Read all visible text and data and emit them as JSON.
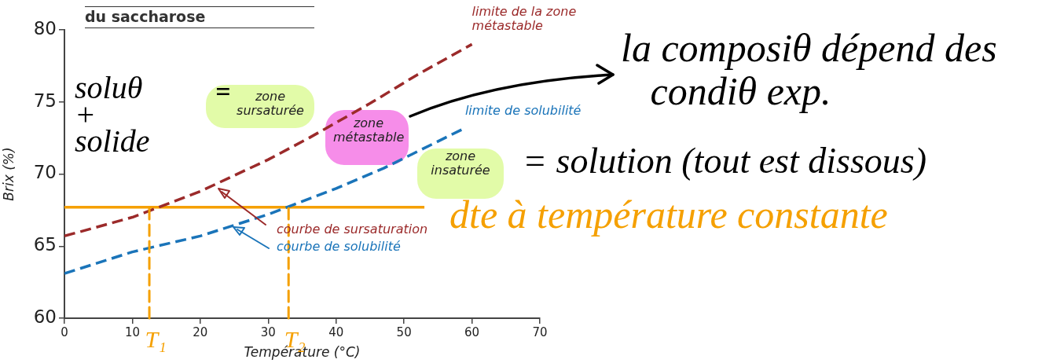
{
  "chart_data": {
    "type": "line",
    "title": "du saccharose",
    "xlabel": "Température (°C)",
    "ylabel": "Brix (%)",
    "xlim": [
      0,
      70
    ],
    "xticks": [
      0,
      10,
      20,
      30,
      40,
      50,
      60,
      70
    ],
    "ylim": [
      60,
      80
    ],
    "yticks": [
      60,
      65,
      70,
      75,
      80
    ],
    "grid": false,
    "legend": false,
    "marker": "none",
    "series": [
      {
        "name": "courbe de sursaturation",
        "color": "#9b2a2a",
        "line_style": "dashed",
        "x": [
          0,
          10,
          20,
          30,
          36,
          45,
          52,
          60
        ],
        "values": [
          65.7,
          67.0,
          68.8,
          71.0,
          72.5,
          74.9,
          76.9,
          79.0
        ]
      },
      {
        "name": "courbe de solubilité",
        "color": "#1a74b9",
        "line_style": "dashed",
        "x": [
          0,
          10,
          20,
          30,
          40,
          47,
          59
        ],
        "values": [
          63.1,
          64.6,
          65.7,
          67.2,
          69.0,
          70.4,
          73.2
        ]
      },
      {
        "color": "#f5a000",
        "line_style": "solid",
        "x": [
          0,
          53
        ],
        "values": [
          67.7,
          67.7
        ]
      }
    ],
    "ref_lines": [
      {
        "axis": "x",
        "value": 12.5,
        "label": "T₁",
        "color": "#f5a000",
        "line_style": "dashed"
      },
      {
        "axis": "x",
        "value": 33,
        "label": "T₂",
        "color": "#f5a000",
        "line_style": "dashed"
      }
    ],
    "annotations": [
      "soluθ\n+\nsolide",
      "=",
      "zone sursaturée",
      "zone métastable",
      "zone insaturée",
      {
        "text": "limite de la zone\nmétastable",
        "x": 60,
        "y": 79
      },
      {
        "text": "limite de solubilité",
        "x": 59,
        "y": 73.2
      },
      "la composiθ dépend des\n   condiθ exp.",
      "= solution (tout est dissous)",
      "dte à température constante"
    ]
  }
}
